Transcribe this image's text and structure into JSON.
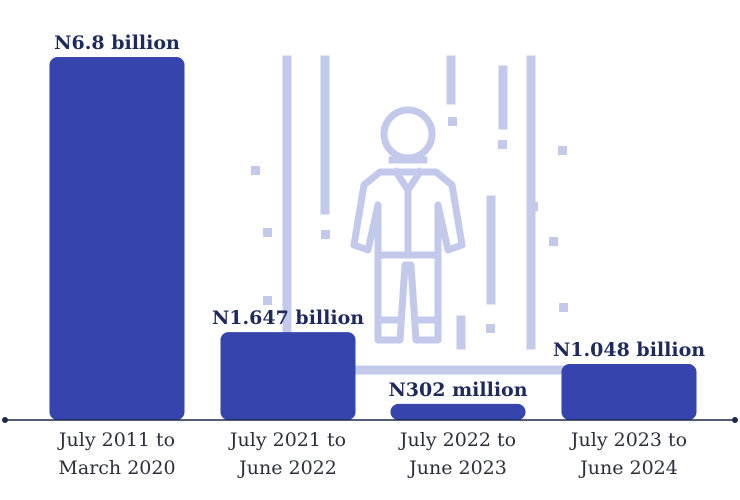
{
  "chart_data": {
    "type": "bar",
    "categories": [
      [
        "July 2011 to",
        "March 2020"
      ],
      [
        "July 2021 to",
        "June 2022"
      ],
      [
        "July 2022 to",
        "June 2023"
      ],
      [
        "July 2023 to",
        "June 2024"
      ]
    ],
    "values": [
      6800,
      1647,
      302,
      1048
    ],
    "value_labels": [
      "N6.8 billion",
      "N1.647 billion",
      "N302 million",
      "N1.048 billion"
    ],
    "title": "",
    "xlabel": "",
    "ylabel": "",
    "ylim": [
      0,
      6800
    ],
    "grid": false,
    "legend": "none"
  },
  "colors": {
    "bar": "#3545ad",
    "axis": "#1c2a4a",
    "illustration": "#c3c9ea",
    "value_text": "#1f2a5c",
    "tick_text": "#2b2f3a"
  },
  "illustration": {
    "icon": "prisoner-behind-bars-icon"
  }
}
